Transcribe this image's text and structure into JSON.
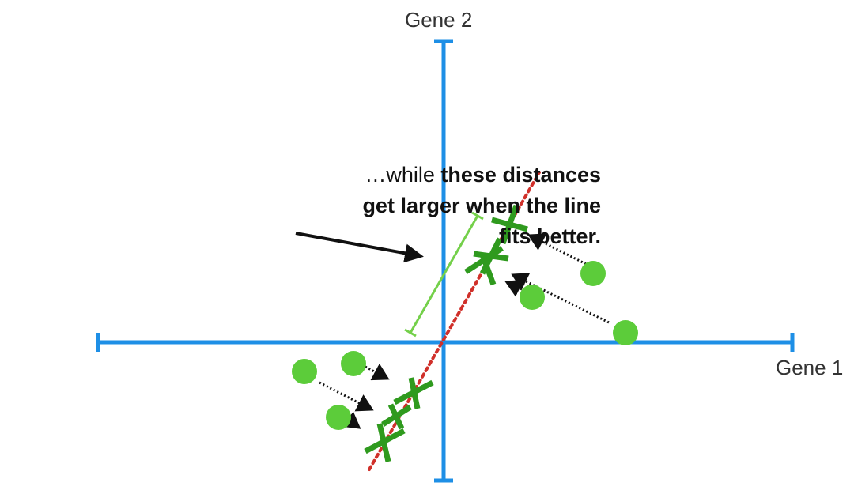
{
  "axes": {
    "x_label": "Gene 1",
    "y_label": "Gene 2",
    "color": "#1e8fe6"
  },
  "annotation": {
    "line1_normal": "…while ",
    "line1_bold": "these distances",
    "line2_bold": "get larger when the line",
    "line3_bold": "fits better."
  },
  "colors": {
    "fit_line": "#d0302a",
    "points": "#5ccc3a",
    "projections": "#2f9a1e",
    "distance_bracket": "#74d04a",
    "arrows": "#111111"
  }
}
